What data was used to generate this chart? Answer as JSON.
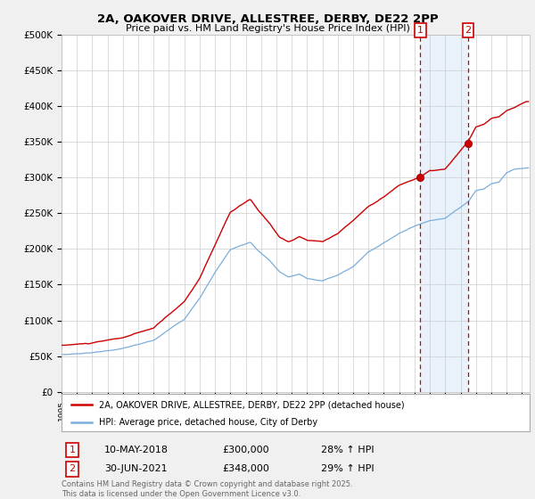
{
  "title_line1": "2A, OAKOVER DRIVE, ALLESTREE, DERBY, DE22 2PP",
  "title_line2": "Price paid vs. HM Land Registry's House Price Index (HPI)",
  "ylim": [
    0,
    500000
  ],
  "yticks": [
    0,
    50000,
    100000,
    150000,
    200000,
    250000,
    300000,
    350000,
    400000,
    450000,
    500000
  ],
  "ytick_labels": [
    "£0",
    "£50K",
    "£100K",
    "£150K",
    "£200K",
    "£250K",
    "£300K",
    "£350K",
    "£400K",
    "£450K",
    "£500K"
  ],
  "legend_label1": "2A, OAKOVER DRIVE, ALLESTREE, DERBY, DE22 2PP (detached house)",
  "legend_label2": "HPI: Average price, detached house, City of Derby",
  "line1_color": "#cc0000",
  "line2_color": "#7aaddb",
  "vline_color": "#cc0000",
  "shade_color": "#ddeeff",
  "annotation1_label": "1",
  "annotation2_label": "2",
  "sale1_date": "10-MAY-2018",
  "sale1_price": "£300,000",
  "sale1_hpi": "28% ↑ HPI",
  "sale2_date": "30-JUN-2021",
  "sale2_price": "£348,000",
  "sale2_hpi": "29% ↑ HPI",
  "footer": "Contains HM Land Registry data © Crown copyright and database right 2025.\nThis data is licensed under the Open Government Licence v3.0.",
  "background_color": "#f0f0f0",
  "plot_bg_color": "#ffffff",
  "grid_color": "#cccccc",
  "sale1_x": 2018.37,
  "sale1_y": 300000,
  "sale2_x": 2021.5,
  "sale2_y": 348000,
  "xlim_start": 1995,
  "xlim_end": 2025.5
}
